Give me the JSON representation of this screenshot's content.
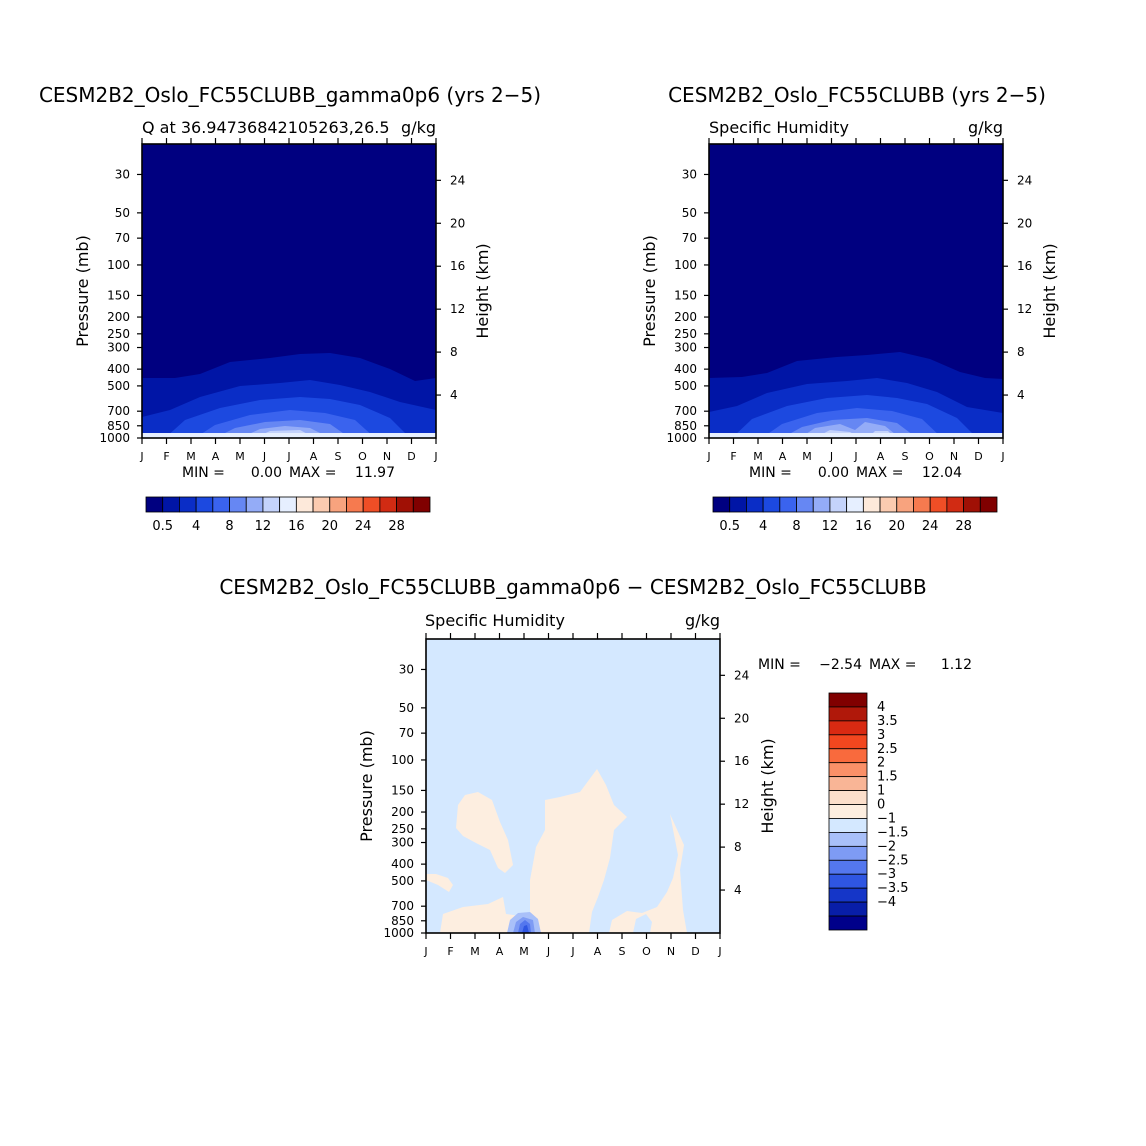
{
  "months": [
    "J",
    "F",
    "M",
    "A",
    "M",
    "J",
    "J",
    "A",
    "S",
    "O",
    "N",
    "D",
    "J"
  ],
  "palette": {
    "q_levels": [
      "#000080",
      "#0015a6",
      "#0a2dc6",
      "#1c49e0",
      "#3a63ee",
      "#6687f3",
      "#94acf7",
      "#c4d3fb",
      "#e6efff",
      "#fde9da",
      "#fbcbb0",
      "#f8a37e",
      "#f67a4f",
      "#ef4e26",
      "#d12b13",
      "#a01005",
      "#800000"
    ],
    "diff_levels": [
      "#800000",
      "#b0180a",
      "#d92a12",
      "#f2471f",
      "#f96a3d",
      "#fa9068",
      "#f9b596",
      "#fcdfcb",
      "#fdeee0",
      "#d4e8ff",
      "#a9c0f9",
      "#7e9bf4",
      "#5477ee",
      "#2f56e2",
      "#1536c8",
      "#081ea8",
      "#00008a"
    ]
  },
  "chart_data": [
    {
      "type": "contour",
      "id": "model_a",
      "title": "CESM2B2_Oslo_FC55CLUBB_gamma0p6 (yrs 2−5)",
      "subtitle_left": "Q at 36.94736842105263,26.5",
      "subtitle_right": "g/kg",
      "ylabel": "Pressure (mb)",
      "ylabel_right": "Height (km)",
      "pressure_ticks": [
        30,
        50,
        70,
        100,
        150,
        200,
        250,
        300,
        400,
        500,
        700,
        850,
        1000
      ],
      "height_ticks": [
        4,
        8,
        12,
        16,
        20,
        24
      ],
      "x_ticks": [
        "J",
        "F",
        "M",
        "A",
        "M",
        "J",
        "J",
        "A",
        "S",
        "O",
        "N",
        "D",
        "J"
      ],
      "min_text": "MIN = ",
      "min_value": "0.00",
      "max_text": "MAX = ",
      "max_value": "11.97",
      "colorbar_labels": [
        "0.5",
        "4",
        "8",
        "12",
        "16",
        "20",
        "24",
        "28"
      ]
    },
    {
      "type": "contour",
      "id": "model_b",
      "title": "CESM2B2_Oslo_FC55CLUBB (yrs 2−5)",
      "subtitle_left": "Specific Humidity",
      "subtitle_right": "g/kg",
      "ylabel": "Pressure (mb)",
      "ylabel_right": "Height (km)",
      "pressure_ticks": [
        30,
        50,
        70,
        100,
        150,
        200,
        250,
        300,
        400,
        500,
        700,
        850,
        1000
      ],
      "height_ticks": [
        4,
        8,
        12,
        16,
        20,
        24
      ],
      "x_ticks": [
        "J",
        "F",
        "M",
        "A",
        "M",
        "J",
        "J",
        "A",
        "S",
        "O",
        "N",
        "D",
        "J"
      ],
      "min_text": "MIN = ",
      "min_value": "0.00",
      "max_text": "MAX = ",
      "max_value": "12.04",
      "colorbar_labels": [
        "0.5",
        "4",
        "8",
        "12",
        "16",
        "20",
        "24",
        "28"
      ]
    },
    {
      "type": "contour",
      "id": "difference",
      "title": "CESM2B2_Oslo_FC55CLUBB_gamma0p6 − CESM2B2_Oslo_FC55CLUBB",
      "subtitle_left": "Specific Humidity",
      "subtitle_right": "g/kg",
      "ylabel": "Pressure (mb)",
      "ylabel_right": "Height (km)",
      "pressure_ticks": [
        30,
        50,
        70,
        100,
        150,
        200,
        250,
        300,
        400,
        500,
        700,
        850,
        1000
      ],
      "height_ticks": [
        4,
        8,
        12,
        16,
        20,
        24
      ],
      "x_ticks": [
        "J",
        "F",
        "M",
        "A",
        "M",
        "J",
        "J",
        "A",
        "S",
        "O",
        "N",
        "D",
        "J"
      ],
      "min_text": "MIN = ",
      "min_value": "−2.54",
      "max_text": "MAX = ",
      "max_value": "1.12",
      "colorbar_labels": [
        "4",
        "3.5",
        "3",
        "2.5",
        "2",
        "1.5",
        "1",
        "0",
        "−1",
        "−1.5",
        "−2",
        "−2.5",
        "−3",
        "−3.5",
        "−4"
      ]
    }
  ]
}
